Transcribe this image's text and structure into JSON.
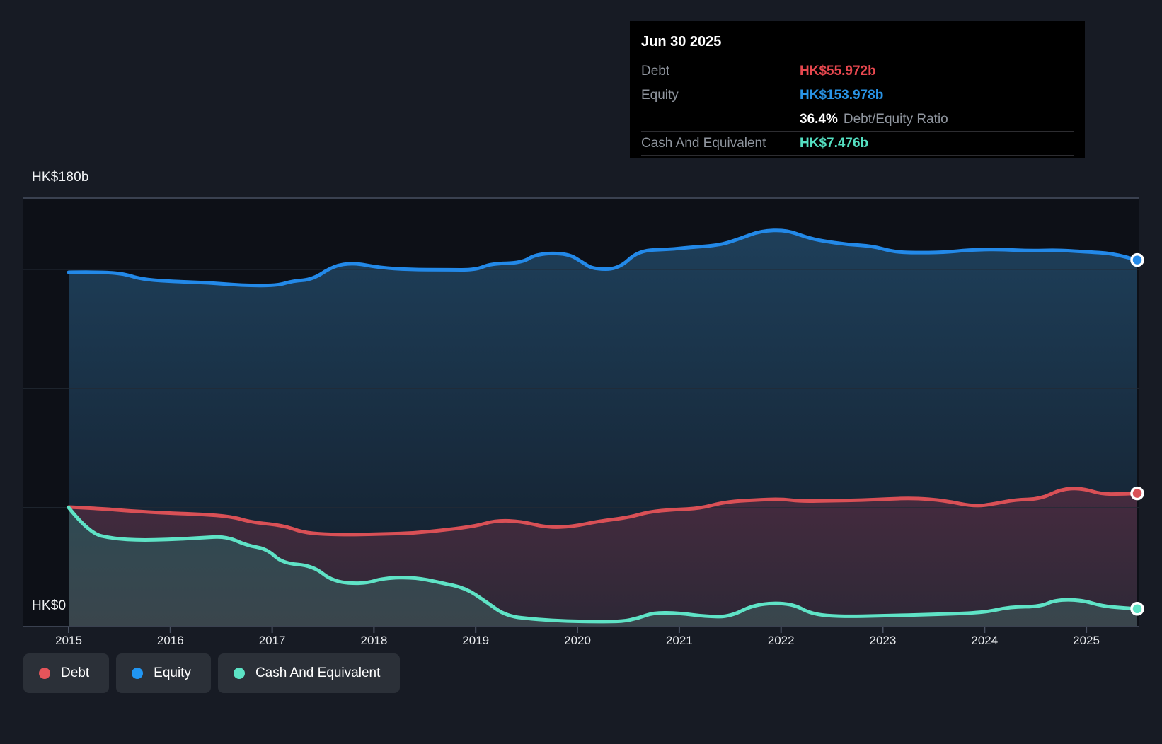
{
  "tooltip": {
    "date": "Jun 30 2025",
    "debt_label": "Debt",
    "debt_value": "HK$55.972b",
    "debt_color": "#e8484f",
    "equity_label": "Equity",
    "equity_value": "HK$153.978b",
    "equity_color": "#2994e6",
    "ratio_value": "36.4%",
    "ratio_label": "Debt/Equity Ratio",
    "cash_label": "Cash And Equivalent",
    "cash_value": "HK$7.476b",
    "cash_color": "#55e0c2"
  },
  "axis": {
    "y_top_label": "HK$180b",
    "y_zero_label": "HK$0"
  },
  "legend": {
    "items": [
      {
        "label": "Debt",
        "color": "#e5545a"
      },
      {
        "label": "Equity",
        "color": "#2196f3"
      },
      {
        "label": "Cash And Equivalent",
        "color": "#5ce3c5"
      }
    ]
  },
  "chart_data": {
    "type": "area",
    "title": "Debt, Equity and Cash history (HK$ billions)",
    "xlim": [
      2015,
      2025.5
    ],
    "ylim": [
      0,
      180
    ],
    "x_ticks": [
      "2015",
      "2016",
      "2017",
      "2018",
      "2019",
      "2020",
      "2021",
      "2022",
      "2023",
      "2024",
      "2025"
    ],
    "y_gridlines": [
      0,
      50,
      100,
      150,
      180
    ],
    "y_axis_labels": {
      "180": "HK$180b",
      "0": "HK$0"
    },
    "legend_position": "bottom-left",
    "last_point": {
      "date": "Jun 30 2025",
      "debt": 55.972,
      "equity": 153.978,
      "cash_and_equivalent": 7.476,
      "debt_equity_ratio_pct": 36.4
    },
    "series": [
      {
        "name": "Equity",
        "unit": "HK$b",
        "line_color": "#2389e8",
        "fill_top": "#1e3f5a",
        "fill_bottom": "#131c28",
        "points": [
          [
            2015.0,
            148.8
          ],
          [
            2015.3,
            149.0
          ],
          [
            2015.55,
            148.2
          ],
          [
            2015.7,
            146.0
          ],
          [
            2016.0,
            145.0
          ],
          [
            2016.35,
            144.5
          ],
          [
            2016.7,
            143.3
          ],
          [
            2017.05,
            143.2
          ],
          [
            2017.2,
            145.2
          ],
          [
            2017.4,
            145.8
          ],
          [
            2017.6,
            151.5
          ],
          [
            2017.8,
            152.8
          ],
          [
            2018.05,
            150.8
          ],
          [
            2018.35,
            150.0
          ],
          [
            2018.7,
            149.9
          ],
          [
            2019.0,
            149.8
          ],
          [
            2019.15,
            152.5
          ],
          [
            2019.45,
            152.7
          ],
          [
            2019.6,
            156.6
          ],
          [
            2019.9,
            156.8
          ],
          [
            2020.05,
            153.0
          ],
          [
            2020.15,
            150.2
          ],
          [
            2020.4,
            150.1
          ],
          [
            2020.6,
            158.0
          ],
          [
            2020.9,
            158.4
          ],
          [
            2021.1,
            159.3
          ],
          [
            2021.4,
            160.2
          ],
          [
            2021.6,
            163.0
          ],
          [
            2021.8,
            166.2
          ],
          [
            2022.05,
            166.6
          ],
          [
            2022.25,
            163.5
          ],
          [
            2022.4,
            162.0
          ],
          [
            2022.65,
            160.5
          ],
          [
            2022.9,
            159.8
          ],
          [
            2023.1,
            157.5
          ],
          [
            2023.3,
            157.0
          ],
          [
            2023.6,
            157.2
          ],
          [
            2023.85,
            158.2
          ],
          [
            2024.15,
            158.5
          ],
          [
            2024.45,
            157.8
          ],
          [
            2024.7,
            158.2
          ],
          [
            2025.0,
            157.4
          ],
          [
            2025.25,
            156.8
          ],
          [
            2025.5,
            153.978
          ]
        ]
      },
      {
        "name": "Debt",
        "unit": "HK$b",
        "line_color": "#d95056",
        "fill_top": "#462b3f",
        "fill_bottom": "#2d2836",
        "points": [
          [
            2015.0,
            50.2
          ],
          [
            2015.3,
            49.6
          ],
          [
            2015.6,
            48.6
          ],
          [
            2016.0,
            47.6
          ],
          [
            2016.3,
            47.2
          ],
          [
            2016.6,
            46.2
          ],
          [
            2016.8,
            43.8
          ],
          [
            2017.1,
            42.6
          ],
          [
            2017.3,
            39.6
          ],
          [
            2017.5,
            38.8
          ],
          [
            2017.8,
            38.6
          ],
          [
            2018.1,
            38.9
          ],
          [
            2018.4,
            39.3
          ],
          [
            2018.7,
            40.6
          ],
          [
            2019.0,
            42.2
          ],
          [
            2019.2,
            44.6
          ],
          [
            2019.45,
            44.2
          ],
          [
            2019.7,
            41.6
          ],
          [
            2019.95,
            42.0
          ],
          [
            2020.2,
            44.2
          ],
          [
            2020.5,
            45.8
          ],
          [
            2020.7,
            48.2
          ],
          [
            2020.95,
            49.2
          ],
          [
            2021.2,
            49.6
          ],
          [
            2021.45,
            52.4
          ],
          [
            2021.75,
            53.2
          ],
          [
            2022.0,
            53.6
          ],
          [
            2022.2,
            52.6
          ],
          [
            2022.5,
            52.9
          ],
          [
            2022.8,
            53.1
          ],
          [
            2023.05,
            53.6
          ],
          [
            2023.3,
            54.0
          ],
          [
            2023.6,
            53.0
          ],
          [
            2023.9,
            50.4
          ],
          [
            2024.1,
            51.6
          ],
          [
            2024.3,
            53.3
          ],
          [
            2024.55,
            53.6
          ],
          [
            2024.75,
            57.7
          ],
          [
            2024.95,
            58.2
          ],
          [
            2025.15,
            55.6
          ],
          [
            2025.35,
            55.7
          ],
          [
            2025.5,
            55.972
          ]
        ]
      },
      {
        "name": "Cash And Equivalent",
        "unit": "HK$b",
        "line_color": "#5fe3c6",
        "fill_top": "#2f4a53",
        "fill_bottom": "#3a454c",
        "points": [
          [
            2015.0,
            50.0
          ],
          [
            2015.2,
            39.2
          ],
          [
            2015.45,
            36.9
          ],
          [
            2015.7,
            36.3
          ],
          [
            2016.0,
            36.6
          ],
          [
            2016.3,
            37.3
          ],
          [
            2016.55,
            37.9
          ],
          [
            2016.75,
            34.1
          ],
          [
            2016.95,
            32.6
          ],
          [
            2017.1,
            26.6
          ],
          [
            2017.4,
            25.6
          ],
          [
            2017.6,
            18.8
          ],
          [
            2017.9,
            17.9
          ],
          [
            2018.1,
            20.4
          ],
          [
            2018.4,
            20.7
          ],
          [
            2018.65,
            18.5
          ],
          [
            2018.9,
            16.2
          ],
          [
            2019.1,
            10.5
          ],
          [
            2019.3,
            4.4
          ],
          [
            2019.6,
            3.0
          ],
          [
            2019.9,
            2.3
          ],
          [
            2020.2,
            2.1
          ],
          [
            2020.45,
            2.2
          ],
          [
            2020.6,
            3.6
          ],
          [
            2020.75,
            5.9
          ],
          [
            2021.0,
            5.7
          ],
          [
            2021.25,
            4.3
          ],
          [
            2021.5,
            4.1
          ],
          [
            2021.75,
            9.6
          ],
          [
            2022.1,
            9.9
          ],
          [
            2022.3,
            5.2
          ],
          [
            2022.6,
            4.2
          ],
          [
            2023.0,
            4.6
          ],
          [
            2023.5,
            5.1
          ],
          [
            2024.0,
            5.9
          ],
          [
            2024.25,
            8.3
          ],
          [
            2024.55,
            8.4
          ],
          [
            2024.7,
            11.3
          ],
          [
            2024.95,
            11.2
          ],
          [
            2025.15,
            8.7
          ],
          [
            2025.35,
            7.9
          ],
          [
            2025.5,
            7.476
          ]
        ]
      }
    ]
  },
  "colors": {
    "page_bg": "#171b24",
    "plot_bg": "#0d1017",
    "grid_faint": "#232a35",
    "grid_strong": "#3a4150",
    "tick": "#4a5262",
    "tooltip_bg": "#000000",
    "legend_pill_bg": "#2b3038"
  }
}
